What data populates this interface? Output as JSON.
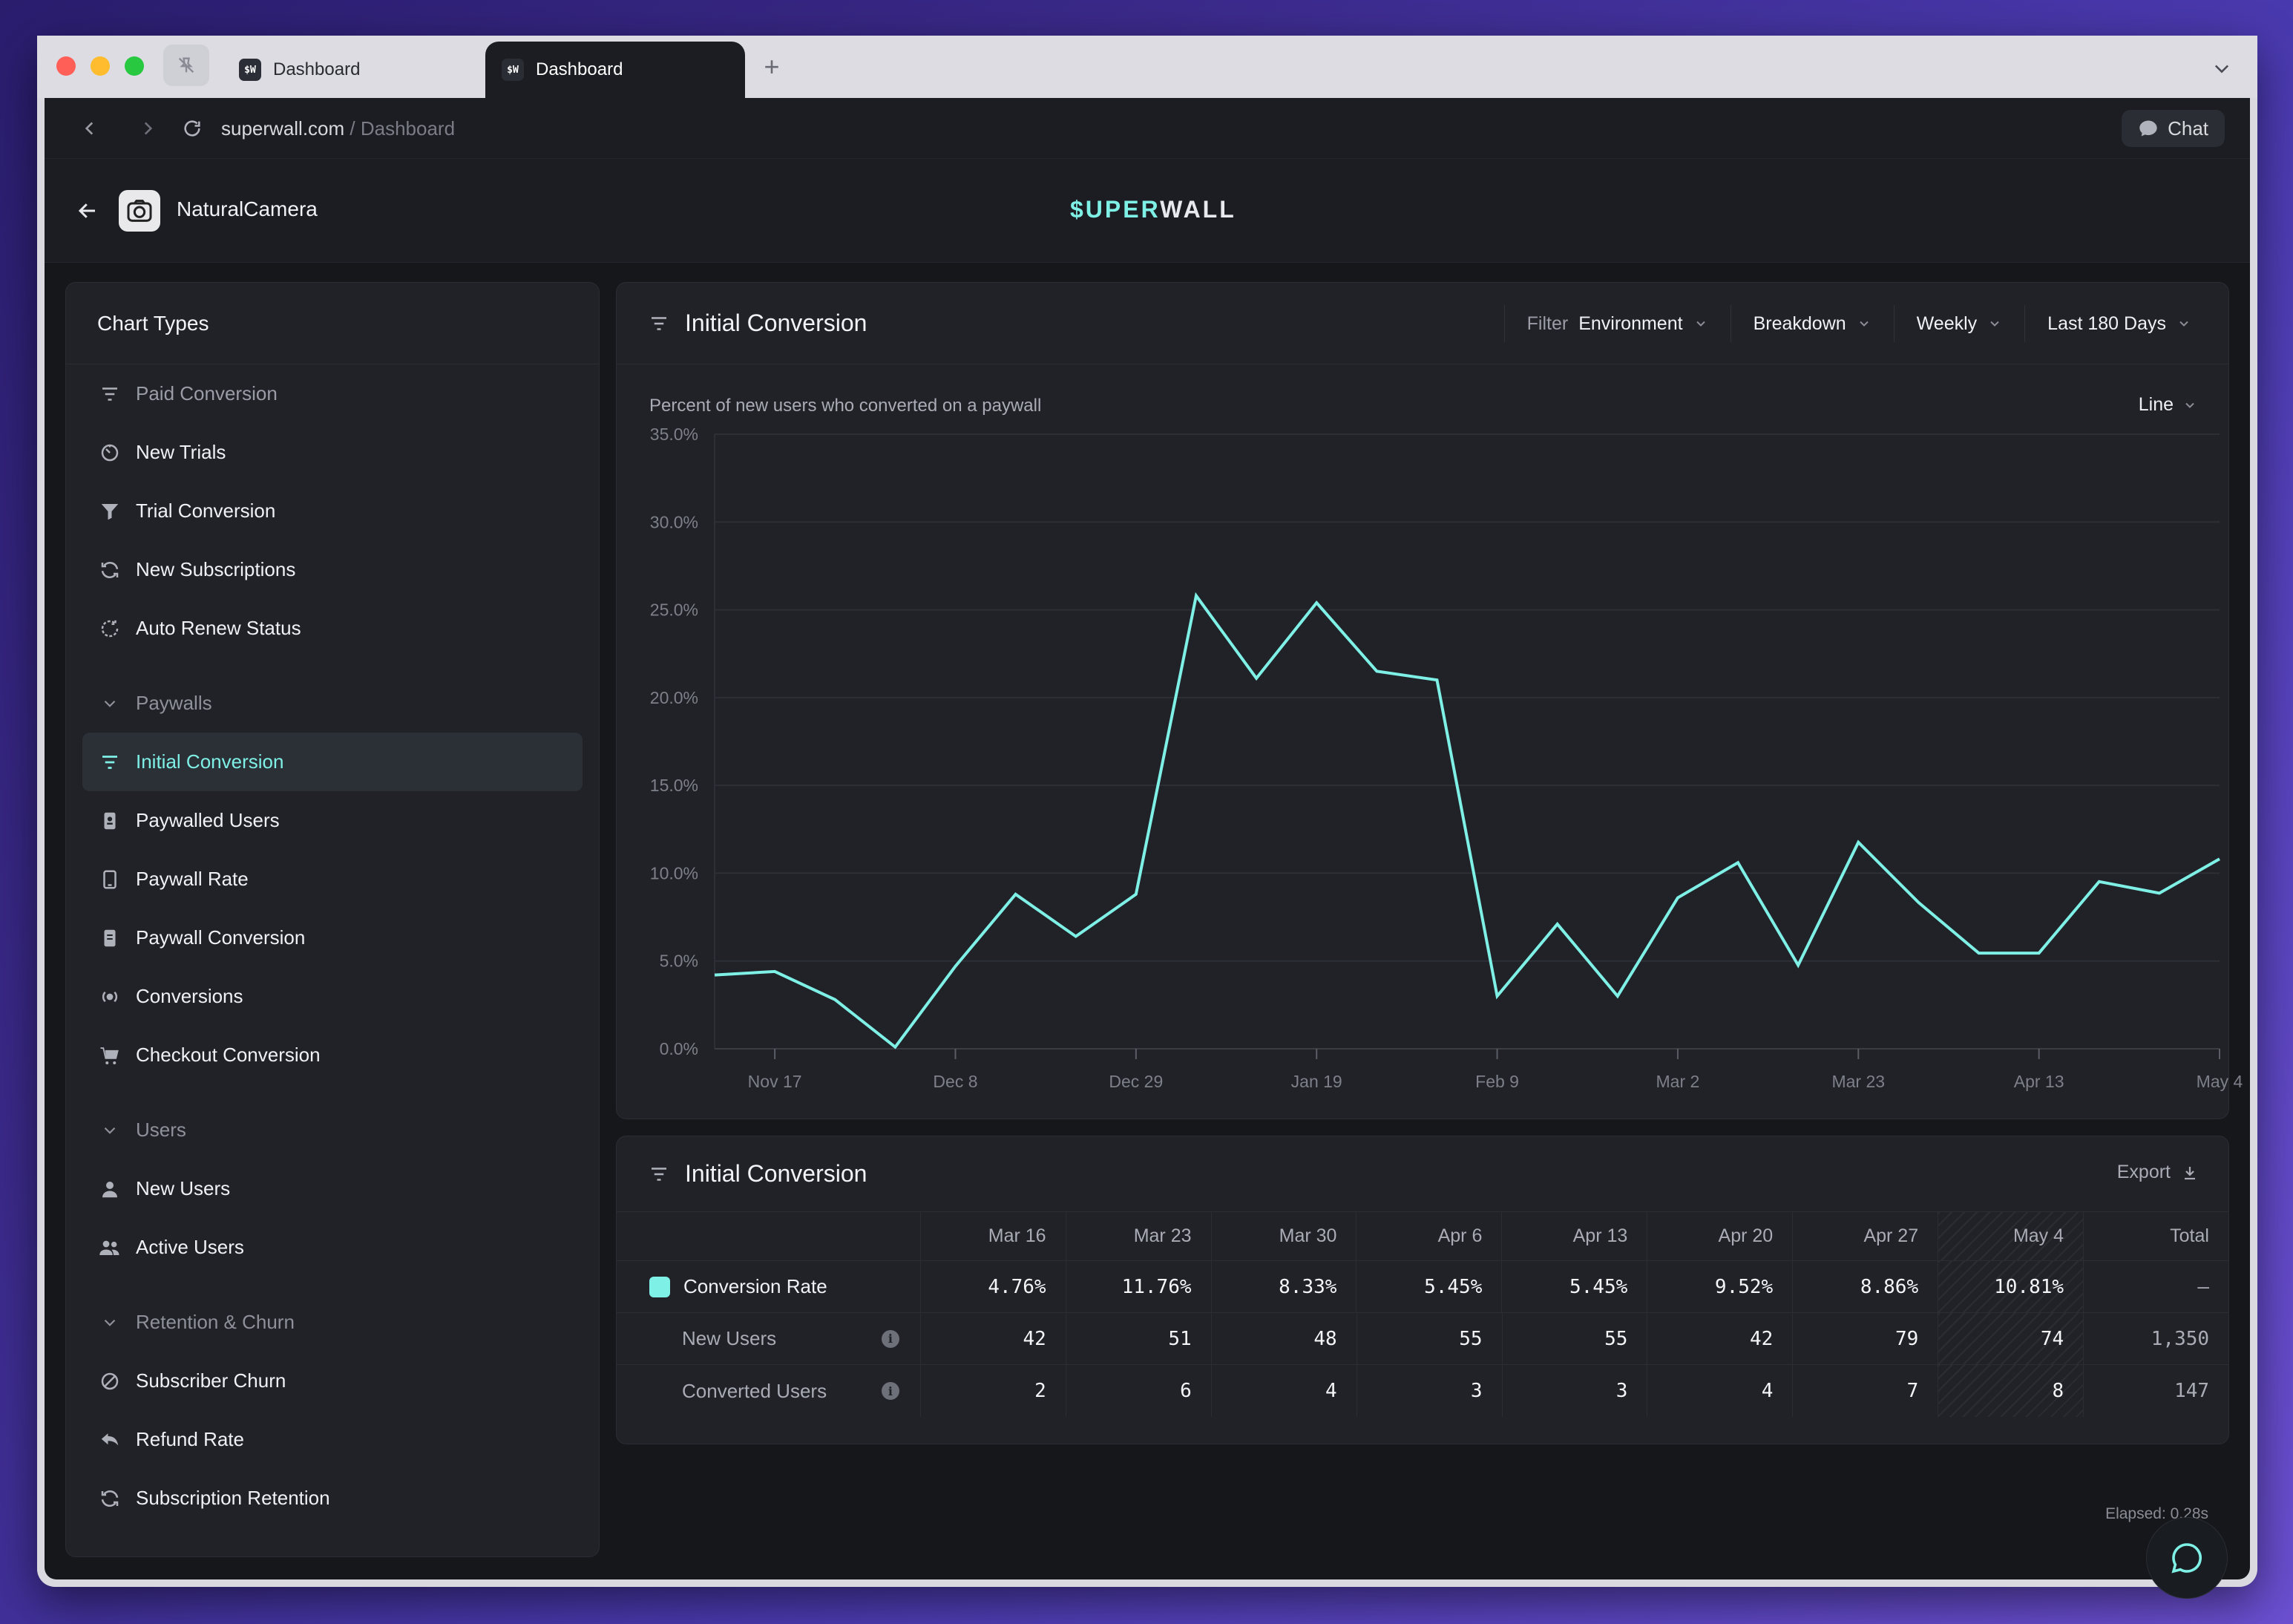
{
  "browser": {
    "tabs": [
      {
        "favicon": "$W",
        "label": "Dashboard"
      },
      {
        "favicon": "$W",
        "label": "Dashboard"
      }
    ],
    "new_tab_symbol": "+",
    "url_host": "superwall.com",
    "url_path": " / Dashboard",
    "chat_label": "Chat"
  },
  "app": {
    "name": "NaturalCamera",
    "logo_accent": "$UPER",
    "logo_rest": "WALL",
    "accent_color": "#7ff0e6"
  },
  "sidebar": {
    "title": "Chart Types",
    "items": [
      {
        "label": "Paid Conversion",
        "icon": "filter-icon",
        "dim": true
      },
      {
        "label": "New Trials",
        "icon": "timer-icon"
      },
      {
        "label": "Trial Conversion",
        "icon": "funnel-icon"
      },
      {
        "label": "New Subscriptions",
        "icon": "refresh-icon"
      },
      {
        "label": "Auto Renew Status",
        "icon": "renew-icon"
      }
    ],
    "section_paywalls": "Paywalls",
    "paywall_items": [
      {
        "label": "Initial Conversion",
        "icon": "filter-icon",
        "active": true
      },
      {
        "label": "Paywalled Users",
        "icon": "badge-icon"
      },
      {
        "label": "Paywall Rate",
        "icon": "tablet-icon"
      },
      {
        "label": "Paywall Conversion",
        "icon": "document-icon"
      },
      {
        "label": "Conversions",
        "icon": "broadcast-icon"
      },
      {
        "label": "Checkout Conversion",
        "icon": "cart-icon"
      }
    ],
    "section_users": "Users",
    "user_items": [
      {
        "label": "New Users",
        "icon": "user-icon"
      },
      {
        "label": "Active Users",
        "icon": "users-icon"
      }
    ],
    "section_retention": "Retention & Churn",
    "retention_items": [
      {
        "label": "Subscriber Churn",
        "icon": "slash-circle-icon"
      },
      {
        "label": "Refund Rate",
        "icon": "reply-icon"
      },
      {
        "label": "Subscription Retention",
        "icon": "refresh-icon"
      }
    ]
  },
  "chart_card": {
    "title": "Initial Conversion",
    "filter_label": "Filter",
    "filter_value": "Environment",
    "breakdown": "Breakdown",
    "interval": "Weekly",
    "range": "Last 180 Days",
    "subtitle": "Percent of new users who converted on a paywall",
    "chart_type_select": "Line"
  },
  "chart_data": {
    "type": "line",
    "y_ticks": [
      "0.0%",
      "5.0%",
      "10.0%",
      "15.0%",
      "20.0%",
      "25.0%",
      "30.0%",
      "35.0%"
    ],
    "ylim": [
      0,
      35
    ],
    "x_tick_labels": [
      "Nov 17",
      "Dec 8",
      "Dec 29",
      "Jan 19",
      "Feb 9",
      "Mar 2",
      "Mar 23",
      "Apr 13",
      "May 4"
    ],
    "series": [
      {
        "color": "#7ff0e6",
        "x": [
          "Nov 10",
          "Nov 17",
          "Nov 24",
          "Dec 1",
          "Dec 8",
          "Dec 15",
          "Dec 22",
          "Dec 29",
          "Jan 5",
          "Jan 12",
          "Jan 19",
          "Jan 26",
          "Feb 2",
          "Feb 9",
          "Feb 16",
          "Feb 23",
          "Mar 2",
          "Mar 9",
          "Mar 16",
          "Mar 23",
          "Mar 30",
          "Apr 6",
          "Apr 13",
          "Apr 20",
          "Apr 27",
          "May 4"
        ],
        "values": [
          4.2,
          4.4,
          2.8,
          0.1,
          4.7,
          8.8,
          6.4,
          8.8,
          25.8,
          21.1,
          25.4,
          21.5,
          21.0,
          3.0,
          7.1,
          3.0,
          8.6,
          10.6,
          4.76,
          11.76,
          8.33,
          5.45,
          5.45,
          9.52,
          8.86,
          10.81
        ]
      }
    ],
    "grid": true
  },
  "table_card": {
    "title": "Initial Conversion",
    "export_label": "Export",
    "columns": [
      "Mar 16",
      "Mar 23",
      "Mar 30",
      "Apr 6",
      "Apr 13",
      "Apr 20",
      "Apr 27",
      "May 4",
      "Total"
    ],
    "rows": [
      {
        "label": "Conversion Rate",
        "values": [
          "4.76%",
          "11.76%",
          "8.33%",
          "5.45%",
          "5.45%",
          "9.52%",
          "8.86%",
          "10.81%",
          "–"
        ]
      },
      {
        "label": "New Users",
        "values": [
          "42",
          "51",
          "48",
          "55",
          "55",
          "42",
          "79",
          "74",
          "1,350"
        ]
      },
      {
        "label": "Converted Users",
        "values": [
          "2",
          "6",
          "4",
          "3",
          "3",
          "4",
          "7",
          "8",
          "147"
        ]
      }
    ]
  },
  "footer": {
    "elapsed": "Elapsed: 0.28s"
  }
}
